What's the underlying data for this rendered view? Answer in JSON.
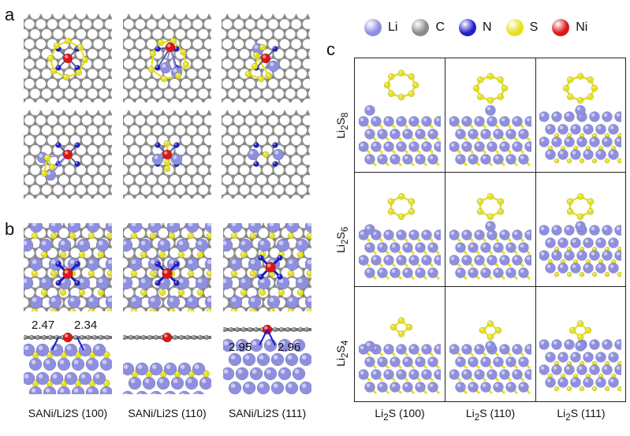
{
  "panels": {
    "a": "a",
    "b": "b",
    "c": "c"
  },
  "legend": [
    {
      "label": "Li",
      "color": "#8f8fe0"
    },
    {
      "label": "C",
      "color": "#8a8a8a"
    },
    {
      "label": "N",
      "color": "#2020c8"
    },
    {
      "label": "S",
      "color": "#e6e020"
    },
    {
      "label": "Ni",
      "color": "#d81818"
    }
  ],
  "panel_b": {
    "captions": [
      "SANi/Li2S (100)",
      "SANi/Li2S (110)",
      "SANi/Li2S (111)"
    ],
    "distances": [
      "2.47",
      "2.34",
      "2.95",
      "2.96"
    ]
  },
  "panel_c": {
    "rows": [
      {
        "base": "Li",
        "sub1": "2",
        "mid": "S",
        "sub2": "8"
      },
      {
        "base": "Li",
        "sub1": "2",
        "mid": "S",
        "sub2": "6"
      },
      {
        "base": "Li",
        "sub1": "2",
        "mid": "S",
        "sub2": "4"
      }
    ],
    "columns": [
      {
        "base": "Li",
        "sub": "2",
        "rest": "S (100)"
      },
      {
        "base": "Li",
        "sub": "2",
        "rest": "S (110)"
      },
      {
        "base": "Li",
        "sub": "2",
        "rest": "S (111)"
      }
    ]
  }
}
